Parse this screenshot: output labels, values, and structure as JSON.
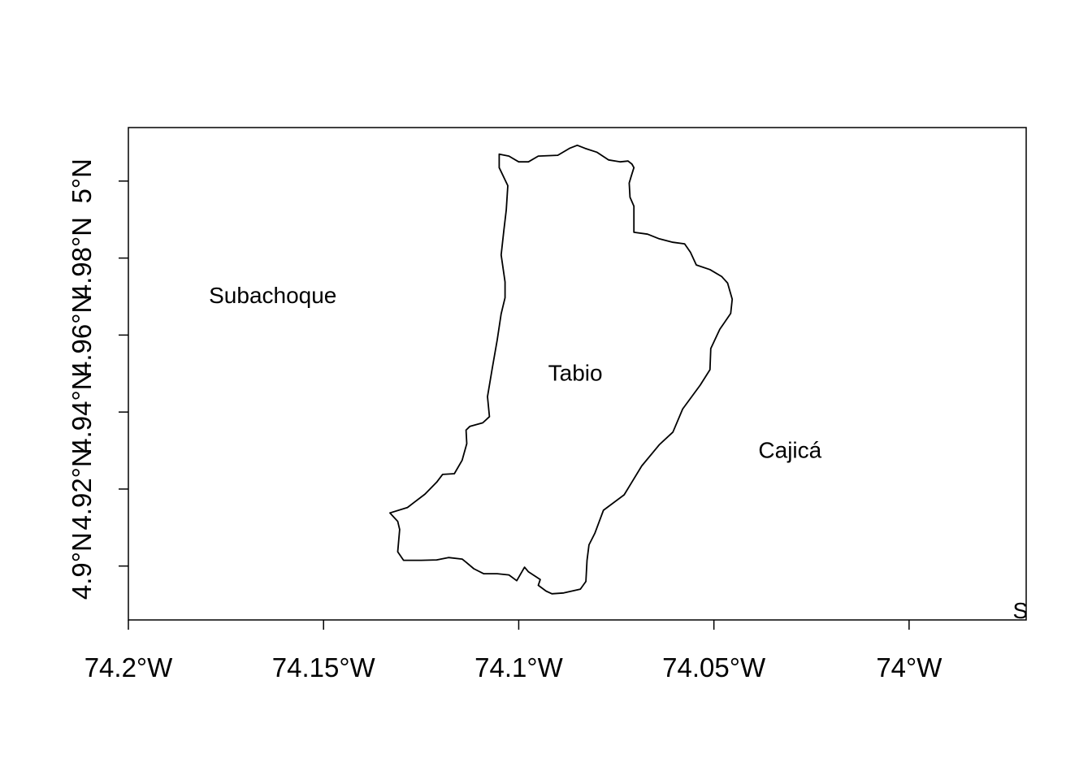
{
  "map": {
    "x_axis": {
      "ticks": [
        {
          "value": -74.2,
          "label": "74.2°W"
        },
        {
          "value": -74.15,
          "label": "74.15°W"
        },
        {
          "value": -74.1,
          "label": "74.1°W"
        },
        {
          "value": -74.05,
          "label": "74.05°W"
        },
        {
          "value": -74.0,
          "label": "74°W"
        }
      ]
    },
    "y_axis": {
      "ticks": [
        {
          "value": 4.9,
          "label": "4.9°N"
        },
        {
          "value": 4.92,
          "label": "4.92°N"
        },
        {
          "value": 4.94,
          "label": "4.94°N"
        },
        {
          "value": 4.96,
          "label": "4.96°N"
        },
        {
          "value": 4.98,
          "label": "4.98°N"
        },
        {
          "value": 5.0,
          "label": "5°N"
        }
      ]
    },
    "extent": {
      "lon": [
        -74.2,
        -73.97
      ],
      "lat": [
        4.886,
        5.0139
      ]
    },
    "place_labels": [
      {
        "name": "Subachoque",
        "lon": -74.163,
        "lat": 4.9704
      },
      {
        "name": "Tabio",
        "lon": -74.0855,
        "lat": 4.9503
      },
      {
        "name": "Cajicá",
        "lon": -74.0305,
        "lat": 4.9302
      },
      {
        "name": "S",
        "lon": -73.9715,
        "lat": 4.8885
      }
    ],
    "tabio_boundary": [
      [
        -74.105,
        5.007
      ],
      [
        -74.1025,
        5.0065
      ],
      [
        -74.1,
        5.005
      ],
      [
        -74.0975,
        5.005
      ],
      [
        -74.095,
        5.0065
      ],
      [
        -74.09,
        5.0067
      ],
      [
        -74.087,
        5.0085
      ],
      [
        -74.085,
        5.0093
      ],
      [
        -74.083,
        5.0085
      ],
      [
        -74.08,
        5.0075
      ],
      [
        -74.077,
        5.0055
      ],
      [
        -74.074,
        5.005
      ],
      [
        -74.072,
        5.0052
      ],
      [
        -74.071,
        5.0044
      ],
      [
        -74.0705,
        5.0035
      ],
      [
        -74.0712,
        5.0012
      ],
      [
        -74.0717,
        4.9995
      ],
      [
        -74.0715,
        4.9958
      ],
      [
        -74.0705,
        4.9935
      ],
      [
        -74.0705,
        4.9867
      ],
      [
        -74.067,
        4.9862
      ],
      [
        -74.064,
        4.985
      ],
      [
        -74.0605,
        4.9841
      ],
      [
        -74.0575,
        4.9837
      ],
      [
        -74.056,
        4.9815
      ],
      [
        -74.0545,
        4.9782
      ],
      [
        -74.051,
        4.977
      ],
      [
        -74.048,
        4.9752
      ],
      [
        -74.0465,
        4.9735
      ],
      [
        -74.0453,
        4.9693
      ],
      [
        -74.0457,
        4.9656
      ],
      [
        -74.0485,
        4.9615
      ],
      [
        -74.0508,
        4.9565
      ],
      [
        -74.051,
        4.951
      ],
      [
        -74.0535,
        4.947
      ],
      [
        -74.058,
        4.9408
      ],
      [
        -74.0605,
        4.9348
      ],
      [
        -74.064,
        4.9315
      ],
      [
        -74.0685,
        4.926
      ],
      [
        -74.0713,
        4.9213
      ],
      [
        -74.073,
        4.9185
      ],
      [
        -74.0783,
        4.9145
      ],
      [
        -74.0805,
        4.9085
      ],
      [
        -74.082,
        4.9055
      ],
      [
        -74.0825,
        4.9015
      ],
      [
        -74.0828,
        4.896
      ],
      [
        -74.0842,
        4.894
      ],
      [
        -74.0885,
        4.893
      ],
      [
        -74.0915,
        4.8928
      ],
      [
        -74.093,
        4.8935
      ],
      [
        -74.095,
        4.895
      ],
      [
        -74.0945,
        4.8965
      ],
      [
        -74.0975,
        4.8985
      ],
      [
        -74.0985,
        4.8997
      ],
      [
        -74.1005,
        4.8962
      ],
      [
        -74.1025,
        4.8977
      ],
      [
        -74.1055,
        4.898
      ],
      [
        -74.109,
        4.898
      ],
      [
        -74.1115,
        4.8993
      ],
      [
        -74.1135,
        4.901
      ],
      [
        -74.1145,
        4.9018
      ],
      [
        -74.118,
        4.9022
      ],
      [
        -74.121,
        4.9016
      ],
      [
        -74.125,
        4.9015
      ],
      [
        -74.1295,
        4.9015
      ],
      [
        -74.131,
        4.9037
      ],
      [
        -74.1305,
        4.9095
      ],
      [
        -74.131,
        4.9116
      ],
      [
        -74.133,
        4.9138
      ],
      [
        -74.1285,
        4.9152
      ],
      [
        -74.124,
        4.9187
      ],
      [
        -74.121,
        4.9218
      ],
      [
        -74.1195,
        4.9238
      ],
      [
        -74.1165,
        4.924
      ],
      [
        -74.1145,
        4.9275
      ],
      [
        -74.1133,
        4.9318
      ],
      [
        -74.1135,
        4.9353
      ],
      [
        -74.1125,
        4.9363
      ],
      [
        -74.1092,
        4.9372
      ],
      [
        -74.1075,
        4.9388
      ],
      [
        -74.108,
        4.944
      ],
      [
        -74.1068,
        4.9513
      ],
      [
        -74.1055,
        4.9588
      ],
      [
        -74.1045,
        4.9655
      ],
      [
        -74.1035,
        4.9697
      ],
      [
        -74.1035,
        4.9738
      ],
      [
        -74.1045,
        4.9808
      ],
      [
        -74.1038,
        4.9873
      ],
      [
        -74.1032,
        4.9925
      ],
      [
        -74.1028,
        4.9988
      ],
      [
        -74.105,
        5.0035
      ],
      [
        -74.105,
        5.007
      ]
    ]
  }
}
